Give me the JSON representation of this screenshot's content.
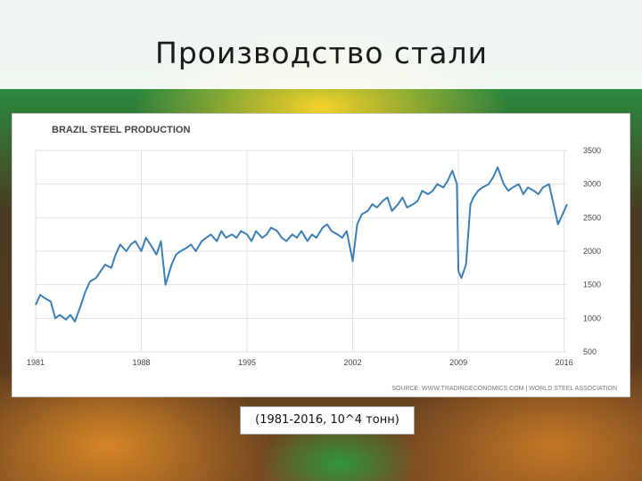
{
  "slide": {
    "title": "Производство стали",
    "caption": "(1981-2016, 10^4 тонн)"
  },
  "colors": {
    "line": "#3c7fb4",
    "grid": "#e2e2e2",
    "text": "#444444"
  },
  "chart_data": {
    "type": "line",
    "title": "BRAZIL STEEL PRODUCTION",
    "source": "SOURCE: WWW.TRADINGECONOMICS.COM | WORLD STEEL ASSOCIATION",
    "xlabel": "",
    "ylabel": "",
    "xlim": [
      1981,
      2016.2
    ],
    "ylim": [
      500,
      3500
    ],
    "x_ticks": [
      1981,
      1988,
      1995,
      2002,
      2009,
      2016
    ],
    "y_ticks": [
      500,
      1000,
      1500,
      2000,
      2500,
      3000,
      3500
    ],
    "y_axis_position": "right",
    "grid": true,
    "series": [
      {
        "values_x": [
          1981.0,
          1981.3,
          1981.6,
          1982.0,
          1982.3,
          1982.6,
          1983.0,
          1983.3,
          1983.6,
          1984.0,
          1984.3,
          1984.6,
          1985.0,
          1985.3,
          1985.6,
          1986.0,
          1986.3,
          1986.6,
          1987.0,
          1987.3,
          1987.6,
          1988.0,
          1988.3,
          1988.6,
          1989.0,
          1989.3,
          1989.6,
          1990.0,
          1990.3,
          1990.6,
          1991.0,
          1991.3,
          1991.6,
          1992.0,
          1992.3,
          1992.6,
          1993.0,
          1993.3,
          1993.6,
          1994.0,
          1994.3,
          1994.6,
          1995.0,
          1995.3,
          1995.6,
          1996.0,
          1996.3,
          1996.6,
          1997.0,
          1997.3,
          1997.6,
          1998.0,
          1998.3,
          1998.6,
          1999.0,
          1999.3,
          1999.6,
          2000.0,
          2000.3,
          2000.6,
          2001.0,
          2001.3,
          2001.6,
          2002.0,
          2002.3,
          2002.6,
          2003.0,
          2003.3,
          2003.6,
          2004.0,
          2004.3,
          2004.6,
          2005.0,
          2005.3,
          2005.6,
          2006.0,
          2006.3,
          2006.6,
          2007.0,
          2007.3,
          2007.6,
          2008.0,
          2008.3,
          2008.6,
          2008.9,
          2009.0,
          2009.2,
          2009.5,
          2009.8,
          2010.0,
          2010.3,
          2010.6,
          2011.0,
          2011.3,
          2011.6,
          2012.0,
          2012.3,
          2012.6,
          2013.0,
          2013.3,
          2013.6,
          2014.0,
          2014.3,
          2014.6,
          2015.0,
          2015.3,
          2015.6,
          2016.0,
          2016.2
        ],
        "values_y": [
          1200,
          1350,
          1300,
          1250,
          1000,
          1050,
          980,
          1050,
          950,
          1200,
          1400,
          1550,
          1600,
          1700,
          1800,
          1750,
          1950,
          2100,
          2000,
          2100,
          2150,
          2000,
          2200,
          2100,
          1950,
          2150,
          1500,
          1800,
          1950,
          2000,
          2050,
          2100,
          2000,
          2150,
          2200,
          2250,
          2150,
          2300,
          2200,
          2250,
          2200,
          2300,
          2250,
          2150,
          2300,
          2200,
          2250,
          2350,
          2300,
          2200,
          2150,
          2250,
          2200,
          2300,
          2150,
          2250,
          2200,
          2350,
          2400,
          2300,
          2250,
          2200,
          2300,
          1850,
          2400,
          2550,
          2600,
          2700,
          2650,
          2750,
          2800,
          2600,
          2700,
          2800,
          2650,
          2700,
          2750,
          2900,
          2850,
          2900,
          3000,
          2950,
          3050,
          3200,
          3000,
          1700,
          1600,
          1800,
          2700,
          2800,
          2900,
          2950,
          3000,
          3100,
          3250,
          3000,
          2900,
          2950,
          3000,
          2850,
          2950,
          2900,
          2850,
          2950,
          3000,
          2700,
          2400,
          2600,
          2700
        ],
        "marker": "none"
      }
    ]
  }
}
